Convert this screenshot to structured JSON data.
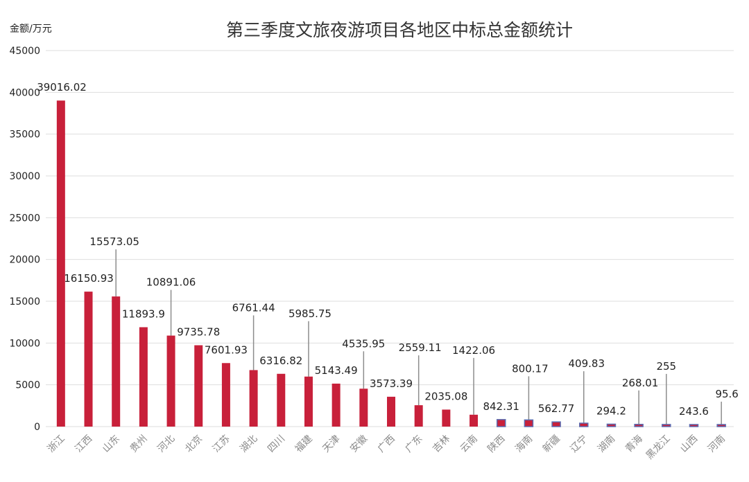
{
  "chart_data": {
    "type": "bar",
    "title": "第三季度文旅夜游项目各地区中标总金额统计",
    "ylabel": "金额/万元",
    "xlabel": "",
    "ylim": [
      0,
      45000
    ],
    "yticks": [
      0,
      5000,
      10000,
      15000,
      20000,
      25000,
      30000,
      35000,
      40000,
      45000
    ],
    "grid": true,
    "legend": "none",
    "categories": [
      "浙江",
      "江西",
      "山东",
      "贵州",
      "河北",
      "北京",
      "江苏",
      "湖北",
      "四川",
      "福建",
      "天津",
      "安徽",
      "广西",
      "广东",
      "吉林",
      "云南",
      "陕西",
      "海南",
      "新疆",
      "辽宁",
      "湖南",
      "青海",
      "黑龙江",
      "山西",
      "河南"
    ],
    "values": [
      39016.02,
      16150.93,
      15573.05,
      11893.9,
      10891.06,
      9735.78,
      7601.93,
      6761.44,
      6316.82,
      5985.75,
      5143.49,
      4535.95,
      3573.39,
      2559.11,
      2035.08,
      1422.06,
      842.31,
      800.17,
      562.77,
      409.83,
      294.2,
      268.01,
      255,
      243.6,
      95.6
    ],
    "value_labels": [
      "39016.02",
      "16150.93",
      "15573.05",
      "11893.9",
      "10891.06",
      "9735.78",
      "7601.93",
      "6761.44",
      "6316.82",
      "5985.75",
      "5143.49",
      "4535.95",
      "3573.39",
      "2559.11",
      "2035.08",
      "1422.06",
      "842.31",
      "800.17",
      "562.77",
      "409.83",
      "294.2",
      "268.01",
      "255",
      "243.6",
      "95.6"
    ],
    "colors": {
      "bar": "#c8203a",
      "bar_outline_small": "#5b6bb0",
      "grid": "#dedede",
      "leader": "#8c8c8c"
    }
  }
}
